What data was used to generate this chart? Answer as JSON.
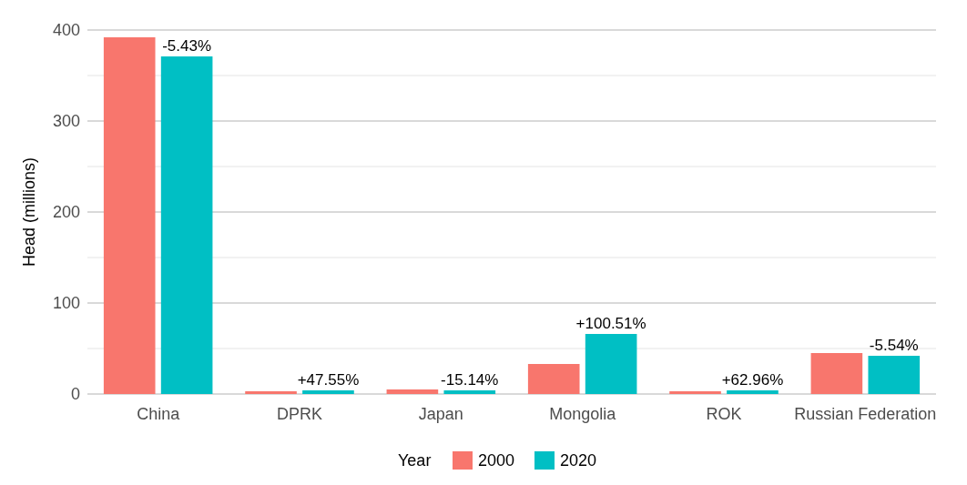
{
  "chart_data": {
    "type": "bar",
    "ylabel": "Head (millions)",
    "legend_title": "Year",
    "categories": [
      "China",
      "DPRK",
      "Japan",
      "Mongolia",
      "ROK",
      "Russian Federation"
    ],
    "series": [
      {
        "name": "2000",
        "color": "#f8766d",
        "values": [
          392,
          3,
          5,
          33,
          3,
          45
        ]
      },
      {
        "name": "2020",
        "color": "#00bfc4",
        "values": [
          371,
          4,
          4,
          66,
          4,
          42
        ]
      }
    ],
    "ylim": [
      0,
      400
    ],
    "yticks": [
      0,
      {
        "value": 50,
        "label": null
      },
      100,
      {
        "value": 150,
        "label": null
      },
      200,
      {
        "value": 250,
        "label": null
      },
      300,
      {
        "value": 350,
        "label": null
      },
      400
    ],
    "grid": "y",
    "legend": "bottom",
    "annotations": [
      {
        "text": "-5.43%",
        "x": "China",
        "y": 371
      },
      {
        "text": "+47.55%",
        "x": "DPRK",
        "y": 4
      },
      {
        "text": "-15.14%",
        "x": "Japan",
        "y": 4
      },
      {
        "text": "+100.51%",
        "x": "Mongolia",
        "y": 66
      },
      {
        "text": "+62.96%",
        "x": "ROK",
        "y": 4
      },
      {
        "text": "-5.54%",
        "x": "Russian Federation",
        "y": 42
      }
    ]
  }
}
